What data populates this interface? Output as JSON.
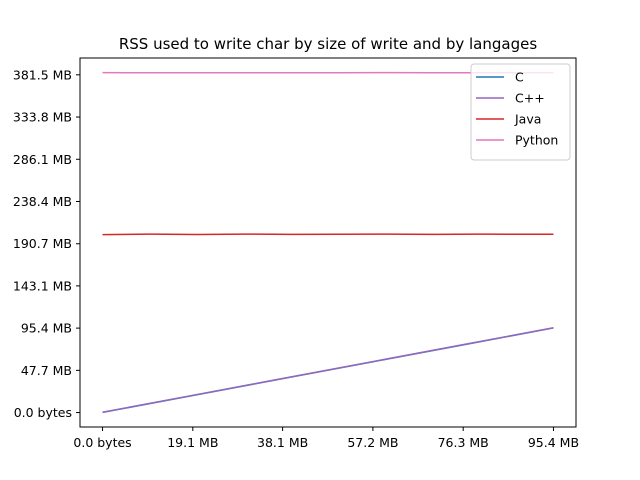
{
  "chart_data": {
    "type": "line",
    "title": "RSS used to write char by size of write and by langages",
    "xlabel": "",
    "ylabel": "",
    "x_ticks": [
      "0.0 bytes",
      "19.1 MB",
      "38.1 MB",
      "57.2 MB",
      "76.3 MB",
      "95.4 MB"
    ],
    "x_tick_values": [
      0,
      19.1,
      38.1,
      57.2,
      76.3,
      95.4
    ],
    "y_ticks": [
      "0.0 bytes",
      "47.7 MB",
      "95.4 MB",
      "143.1 MB",
      "190.7 MB",
      "238.4 MB",
      "286.1 MB",
      "333.8 MB",
      "381.5 MB"
    ],
    "y_tick_values": [
      0,
      47.7,
      95.4,
      143.1,
      190.7,
      238.4,
      286.1,
      333.8,
      381.5
    ],
    "xlim": [
      -4.77,
      100.17
    ],
    "ylim": [
      -16.3,
      400.5
    ],
    "grid": false,
    "legend_position": "top-right",
    "series": [
      {
        "name": "C",
        "color": "#1f77b4",
        "x": [
          0,
          19.1,
          38.1,
          57.2,
          76.3,
          95.4
        ],
        "y": [
          0.2,
          19.3,
          38.3,
          57.4,
          76.5,
          95.6
        ]
      },
      {
        "name": "C++",
        "color": "#9467bd",
        "x": [
          0,
          19.1,
          38.1,
          57.2,
          76.3,
          95.4
        ],
        "y": [
          0.4,
          19.5,
          38.5,
          57.6,
          76.7,
          95.8
        ]
      },
      {
        "name": "Java",
        "color": "#d62728",
        "x": [
          0,
          10,
          20,
          30,
          40,
          50,
          60,
          70,
          80,
          90,
          95.4
        ],
        "y": [
          201.0,
          201.5,
          201.2,
          201.6,
          201.3,
          201.4,
          201.6,
          201.3,
          201.5,
          201.4,
          201.4
        ]
      },
      {
        "name": "Python",
        "color": "#e377c2",
        "x": [
          0,
          10,
          20,
          30,
          40,
          50,
          60,
          70,
          80,
          90,
          95.4
        ],
        "y": [
          384.0,
          383.8,
          383.9,
          383.8,
          383.9,
          383.8,
          384.0,
          383.8,
          383.9,
          383.8,
          383.9
        ]
      }
    ]
  }
}
